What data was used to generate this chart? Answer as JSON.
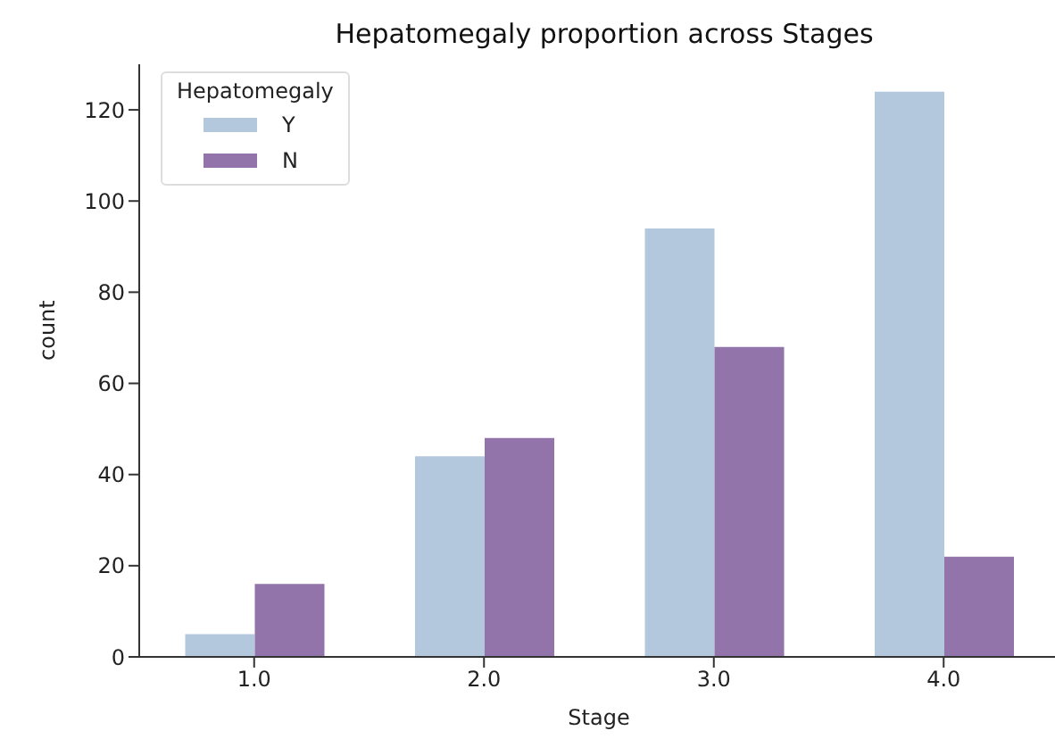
{
  "chart_data": {
    "type": "bar",
    "title": "Hepatomegaly proportion across Stages",
    "xlabel": "Stage",
    "ylabel": "count",
    "legend_title": "Hepatomegaly",
    "categories": [
      "1.0",
      "2.0",
      "3.0",
      "4.0"
    ],
    "series": [
      {
        "name": "Y",
        "color": "#b3c7dd",
        "values": [
          5,
          44,
          94,
          124
        ]
      },
      {
        "name": "N",
        "color": "#9374aa",
        "values": [
          16,
          48,
          68,
          22
        ]
      }
    ],
    "ylim": [
      0,
      130
    ],
    "yticks": [
      0,
      20,
      40,
      60,
      80,
      100,
      120
    ],
    "grid": false,
    "legend": "top left"
  }
}
